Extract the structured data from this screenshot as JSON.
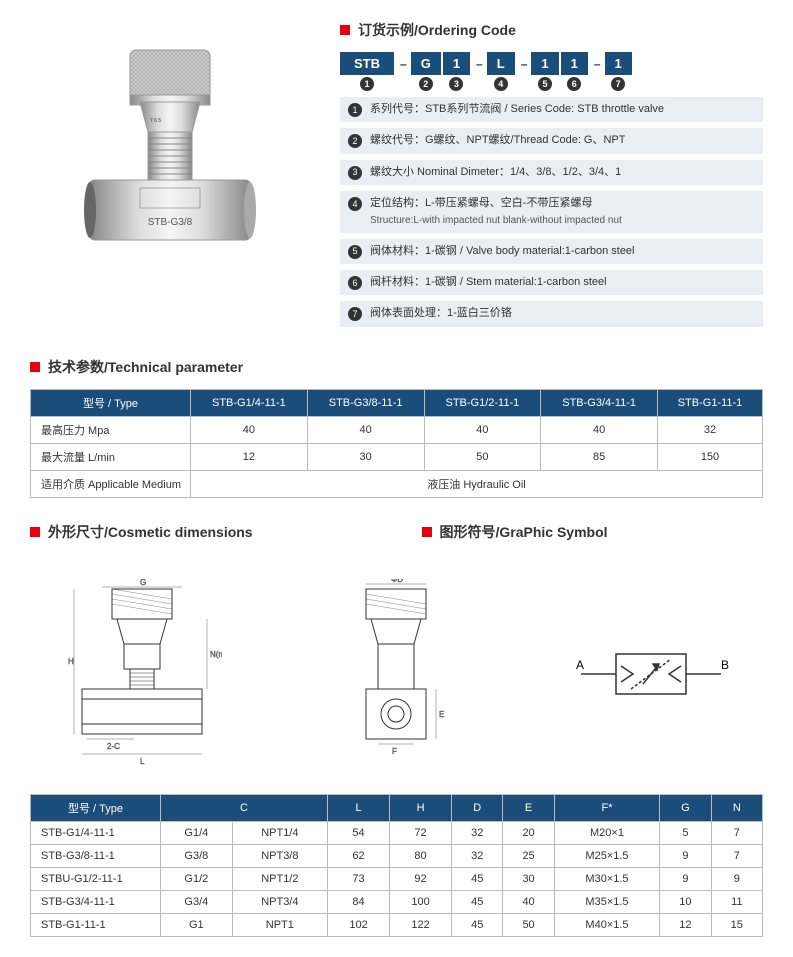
{
  "sections": {
    "ordering": "订货示例/Ordering Code",
    "technical": "技术参数/Technical parameter",
    "dimensions": "外形尺寸/Cosmetic dimensions",
    "symbol": "图形符号/GraPhic Symbol"
  },
  "product_label": "STB-G3/8",
  "code": {
    "parts": [
      "STB",
      "G",
      "1",
      "L",
      "1",
      "1",
      "1"
    ],
    "separators": [
      "–",
      "",
      "–",
      "–",
      "",
      "–"
    ]
  },
  "legend": [
    {
      "num": "1",
      "text": "系列代号：STB系列节流阀 / Series Code: STB throttle valve"
    },
    {
      "num": "2",
      "text": "螺纹代号：G螺纹、NPT螺纹/Thread Code: G、NPT"
    },
    {
      "num": "3",
      "text": "螺纹大小 Nominal Dimeter：1/4、3/8、1/2、3/4、1"
    },
    {
      "num": "4",
      "text": "定位结构：L-带压紧螺母、空白-不带压紧螺母",
      "extra": "Structure:L-with impacted nut    blank-without impacted nut"
    },
    {
      "num": "5",
      "text": "阀体材料：1-碳钢 / Valve body material:1-carbon steel"
    },
    {
      "num": "6",
      "text": "阀杆材料：1-碳钢 / Stem material:1-carbon steel"
    },
    {
      "num": "7",
      "text": "阀体表面处理：1-蓝白三价铬"
    }
  ],
  "technical": {
    "header": [
      "型号 / Type",
      "STB-G1/4-11-1",
      "STB-G3/8-11-1",
      "STB-G1/2-11-1",
      "STB-G3/4-11-1",
      "STB-G1-11-1"
    ],
    "rows": [
      {
        "label": "最高压力 Mpa",
        "vals": [
          "40",
          "40",
          "40",
          "40",
          "32"
        ]
      },
      {
        "label": "最大流量 L/min",
        "vals": [
          "12",
          "30",
          "50",
          "85",
          "150"
        ]
      }
    ],
    "medium_label": "适用介质 Applicable Medium",
    "medium_value": "液压油 Hydraulic Oil"
  },
  "graphic": {
    "a": "A",
    "b": "B"
  },
  "dims": {
    "header": [
      "型号 / Type",
      "C",
      "L",
      "H",
      "D",
      "E",
      "F*",
      "G",
      "N"
    ],
    "col_c_span": 2,
    "rows": [
      [
        "STB-G1/4-11-1",
        "G1/4",
        "NPT1/4",
        "54",
        "72",
        "32",
        "20",
        "M20×1",
        "5",
        "7"
      ],
      [
        "STB-G3/8-11-1",
        "G3/8",
        "NPT3/8",
        "62",
        "80",
        "32",
        "25",
        "M25×1.5",
        "9",
        "7"
      ],
      [
        "STBU-G1/2-11-1",
        "G1/2",
        "NPT1/2",
        "73",
        "92",
        "45",
        "30",
        "M30×1.5",
        "9",
        "9"
      ],
      [
        "STB-G3/4-11-1",
        "G3/4",
        "NPT3/4",
        "84",
        "100",
        "45",
        "40",
        "M35×1.5",
        "10",
        "11"
      ],
      [
        "STB-G1-11-1",
        "G1",
        "NPT1",
        "102",
        "122",
        "45",
        "50",
        "M40×1.5",
        "12",
        "15"
      ]
    ]
  },
  "colors": {
    "accent": "#e60012",
    "header_bg": "#1a4d7a",
    "legend_bg": "#e8eef4",
    "border": "#bbb"
  }
}
